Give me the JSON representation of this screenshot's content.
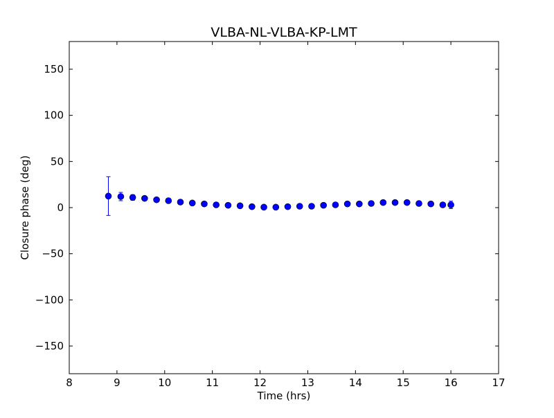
{
  "chart_data": {
    "type": "scatter",
    "title": "VLBA-NL-VLBA-KP-LMT",
    "xlabel": "Time (hrs)",
    "ylabel": "Closure phase (deg)",
    "xlim": [
      8,
      17
    ],
    "ylim": [
      -180,
      180
    ],
    "xticks": [
      8,
      9,
      10,
      11,
      12,
      13,
      14,
      15,
      16,
      17
    ],
    "yticks": [
      -150,
      -100,
      -50,
      0,
      50,
      100,
      150
    ],
    "ytick_labels": [
      "−150",
      "−100",
      "−50",
      "0",
      "50",
      "100",
      "150"
    ],
    "grid": false,
    "marker_color": "#0000ff",
    "series": [
      {
        "name": "closure phase",
        "x": [
          8.82,
          9.08,
          9.33,
          9.58,
          9.83,
          10.08,
          10.33,
          10.58,
          10.83,
          11.08,
          11.33,
          11.58,
          11.83,
          12.08,
          12.33,
          12.58,
          12.83,
          13.08,
          13.33,
          13.58,
          13.83,
          14.08,
          14.33,
          14.58,
          14.83,
          15.08,
          15.33,
          15.58,
          15.83,
          16.0
        ],
        "y": [
          12.5,
          12,
          11,
          10,
          8.5,
          7.5,
          6,
          5,
          4,
          3,
          2.5,
          2,
          1,
          0.5,
          0.5,
          1,
          1.5,
          1.5,
          2.5,
          3,
          4,
          4,
          4.5,
          5.5,
          5.5,
          5.5,
          4.5,
          4,
          3,
          3
        ],
        "yerr": [
          21,
          4.5,
          3,
          2,
          1.5,
          1.5,
          1,
          1,
          1,
          1,
          1,
          1,
          1,
          1,
          1,
          1,
          1,
          1,
          1,
          1,
          1,
          1,
          1,
          1,
          1,
          1,
          1,
          1,
          1,
          4
        ]
      }
    ]
  }
}
